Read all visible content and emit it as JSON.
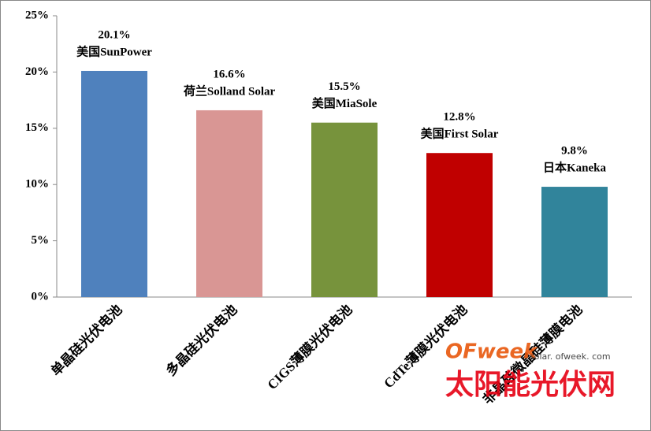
{
  "chart_data": {
    "type": "bar",
    "categories": [
      "单晶硅光伏电池",
      "多晶硅光伏电池",
      "CIGS薄膜光伏电池",
      "CdTe薄膜光伏电池",
      "非晶硅微晶硅薄膜电池"
    ],
    "values": [
      20.1,
      16.6,
      15.5,
      12.8,
      9.8
    ],
    "value_labels": [
      "20.1%",
      "16.6%",
      "15.5%",
      "12.8%",
      "9.8%"
    ],
    "annotations": [
      "美国SunPower",
      "荷兰Solland Solar",
      "美国MiaSole",
      "美国First Solar",
      "日本Kaneka"
    ],
    "colors": [
      "#4f81bd",
      "#d99694",
      "#77933c",
      "#c00000",
      "#31849b"
    ],
    "ylim": [
      0,
      25
    ],
    "yticks": [
      {
        "value": 0,
        "label": "0%"
      },
      {
        "value": 5,
        "label": "5%"
      },
      {
        "value": 10,
        "label": "10%"
      },
      {
        "value": 15,
        "label": "15%"
      },
      {
        "value": 20,
        "label": "20%"
      },
      {
        "value": 25,
        "label": "25%"
      }
    ],
    "grid": false
  },
  "watermark": {
    "brand": "OFweek",
    "url": "solar. ofweek. com",
    "site": "太阳能光伏网"
  }
}
